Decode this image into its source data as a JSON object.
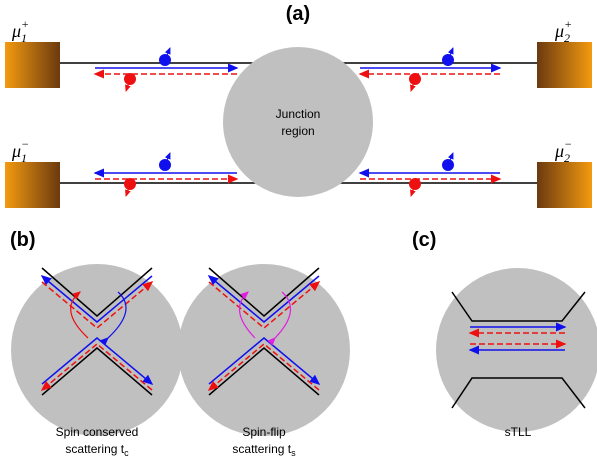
{
  "panels": {
    "a": "(a)",
    "b": "(b)",
    "c": "(c)"
  },
  "reservoirs": [
    {
      "symbol": "μ",
      "sub": "1",
      "sup": "+"
    },
    {
      "symbol": "μ",
      "sub": "2",
      "sup": "+"
    },
    {
      "symbol": "μ",
      "sub": "1",
      "sup": "−"
    },
    {
      "symbol": "μ",
      "sub": "2",
      "sup": "−"
    }
  ],
  "junction": [
    "Junction",
    "region"
  ],
  "captions": [
    {
      "lines": [
        "Spin conserved",
        "scattering t"
      ],
      "sub": "c"
    },
    {
      "lines": [
        "Spin-flip",
        "scattering t"
      ],
      "sub": "s"
    },
    {
      "lines": [
        "sTLL"
      ]
    }
  ]
}
